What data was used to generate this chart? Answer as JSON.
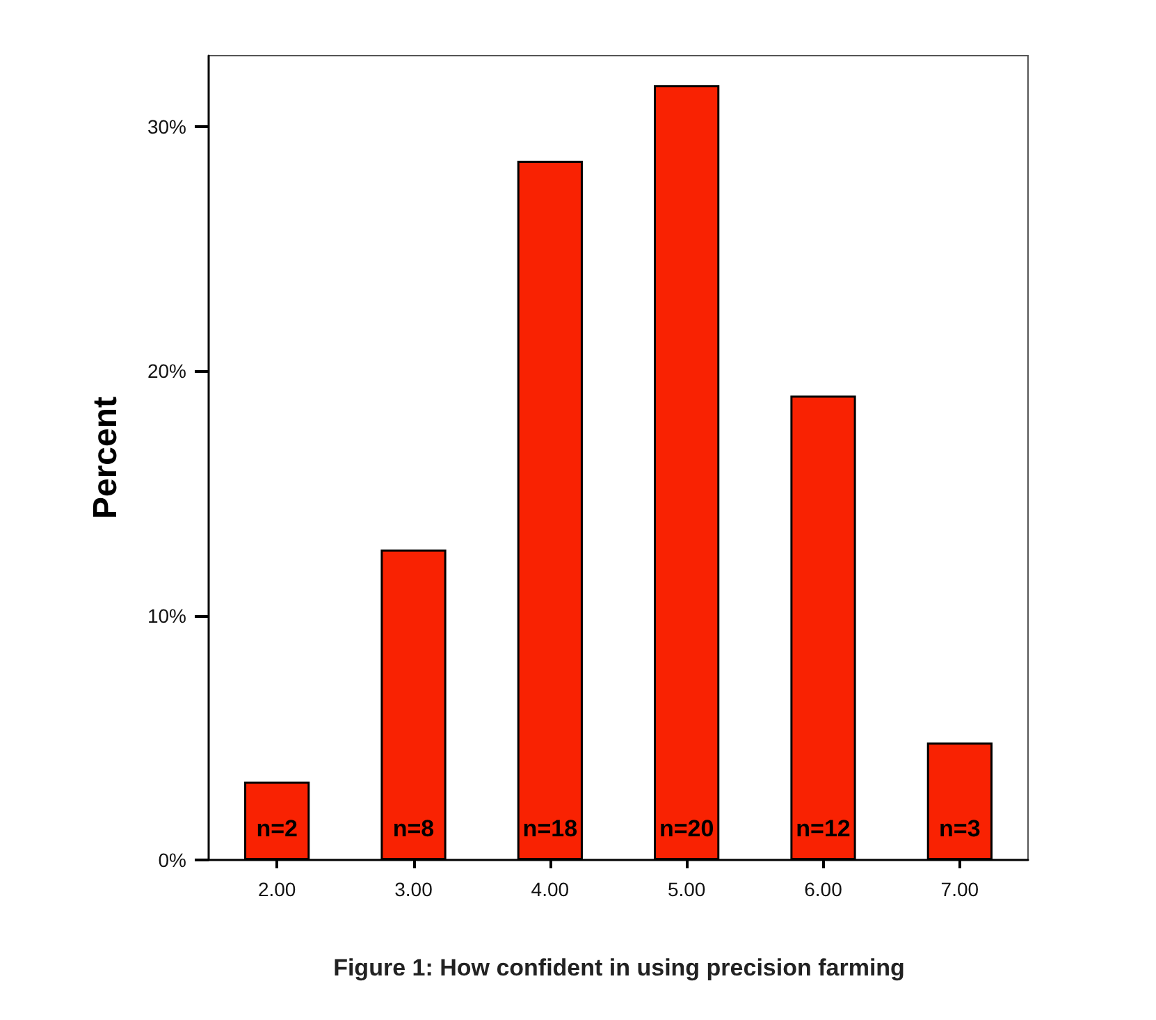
{
  "chart_data": {
    "type": "bar",
    "title": "Figure 1: How confident in using precision farming",
    "ylabel": "Percent",
    "categories": [
      "2.00",
      "3.00",
      "4.00",
      "5.00",
      "6.00",
      "7.00"
    ],
    "values": [
      3.2,
      12.7,
      28.6,
      31.7,
      19.0,
      4.8
    ],
    "annotations": [
      "n=2",
      "n=8",
      "n=18",
      "n=20",
      "n=12",
      "n=3"
    ],
    "color": "#f92202",
    "ylim": [
      0,
      32.9
    ],
    "yticks": [
      {
        "value": 0,
        "label": "0%"
      },
      {
        "value": 10,
        "label": "10%"
      },
      {
        "value": 20,
        "label": "20%"
      },
      {
        "value": 30,
        "label": "30%"
      }
    ],
    "grid": false
  }
}
